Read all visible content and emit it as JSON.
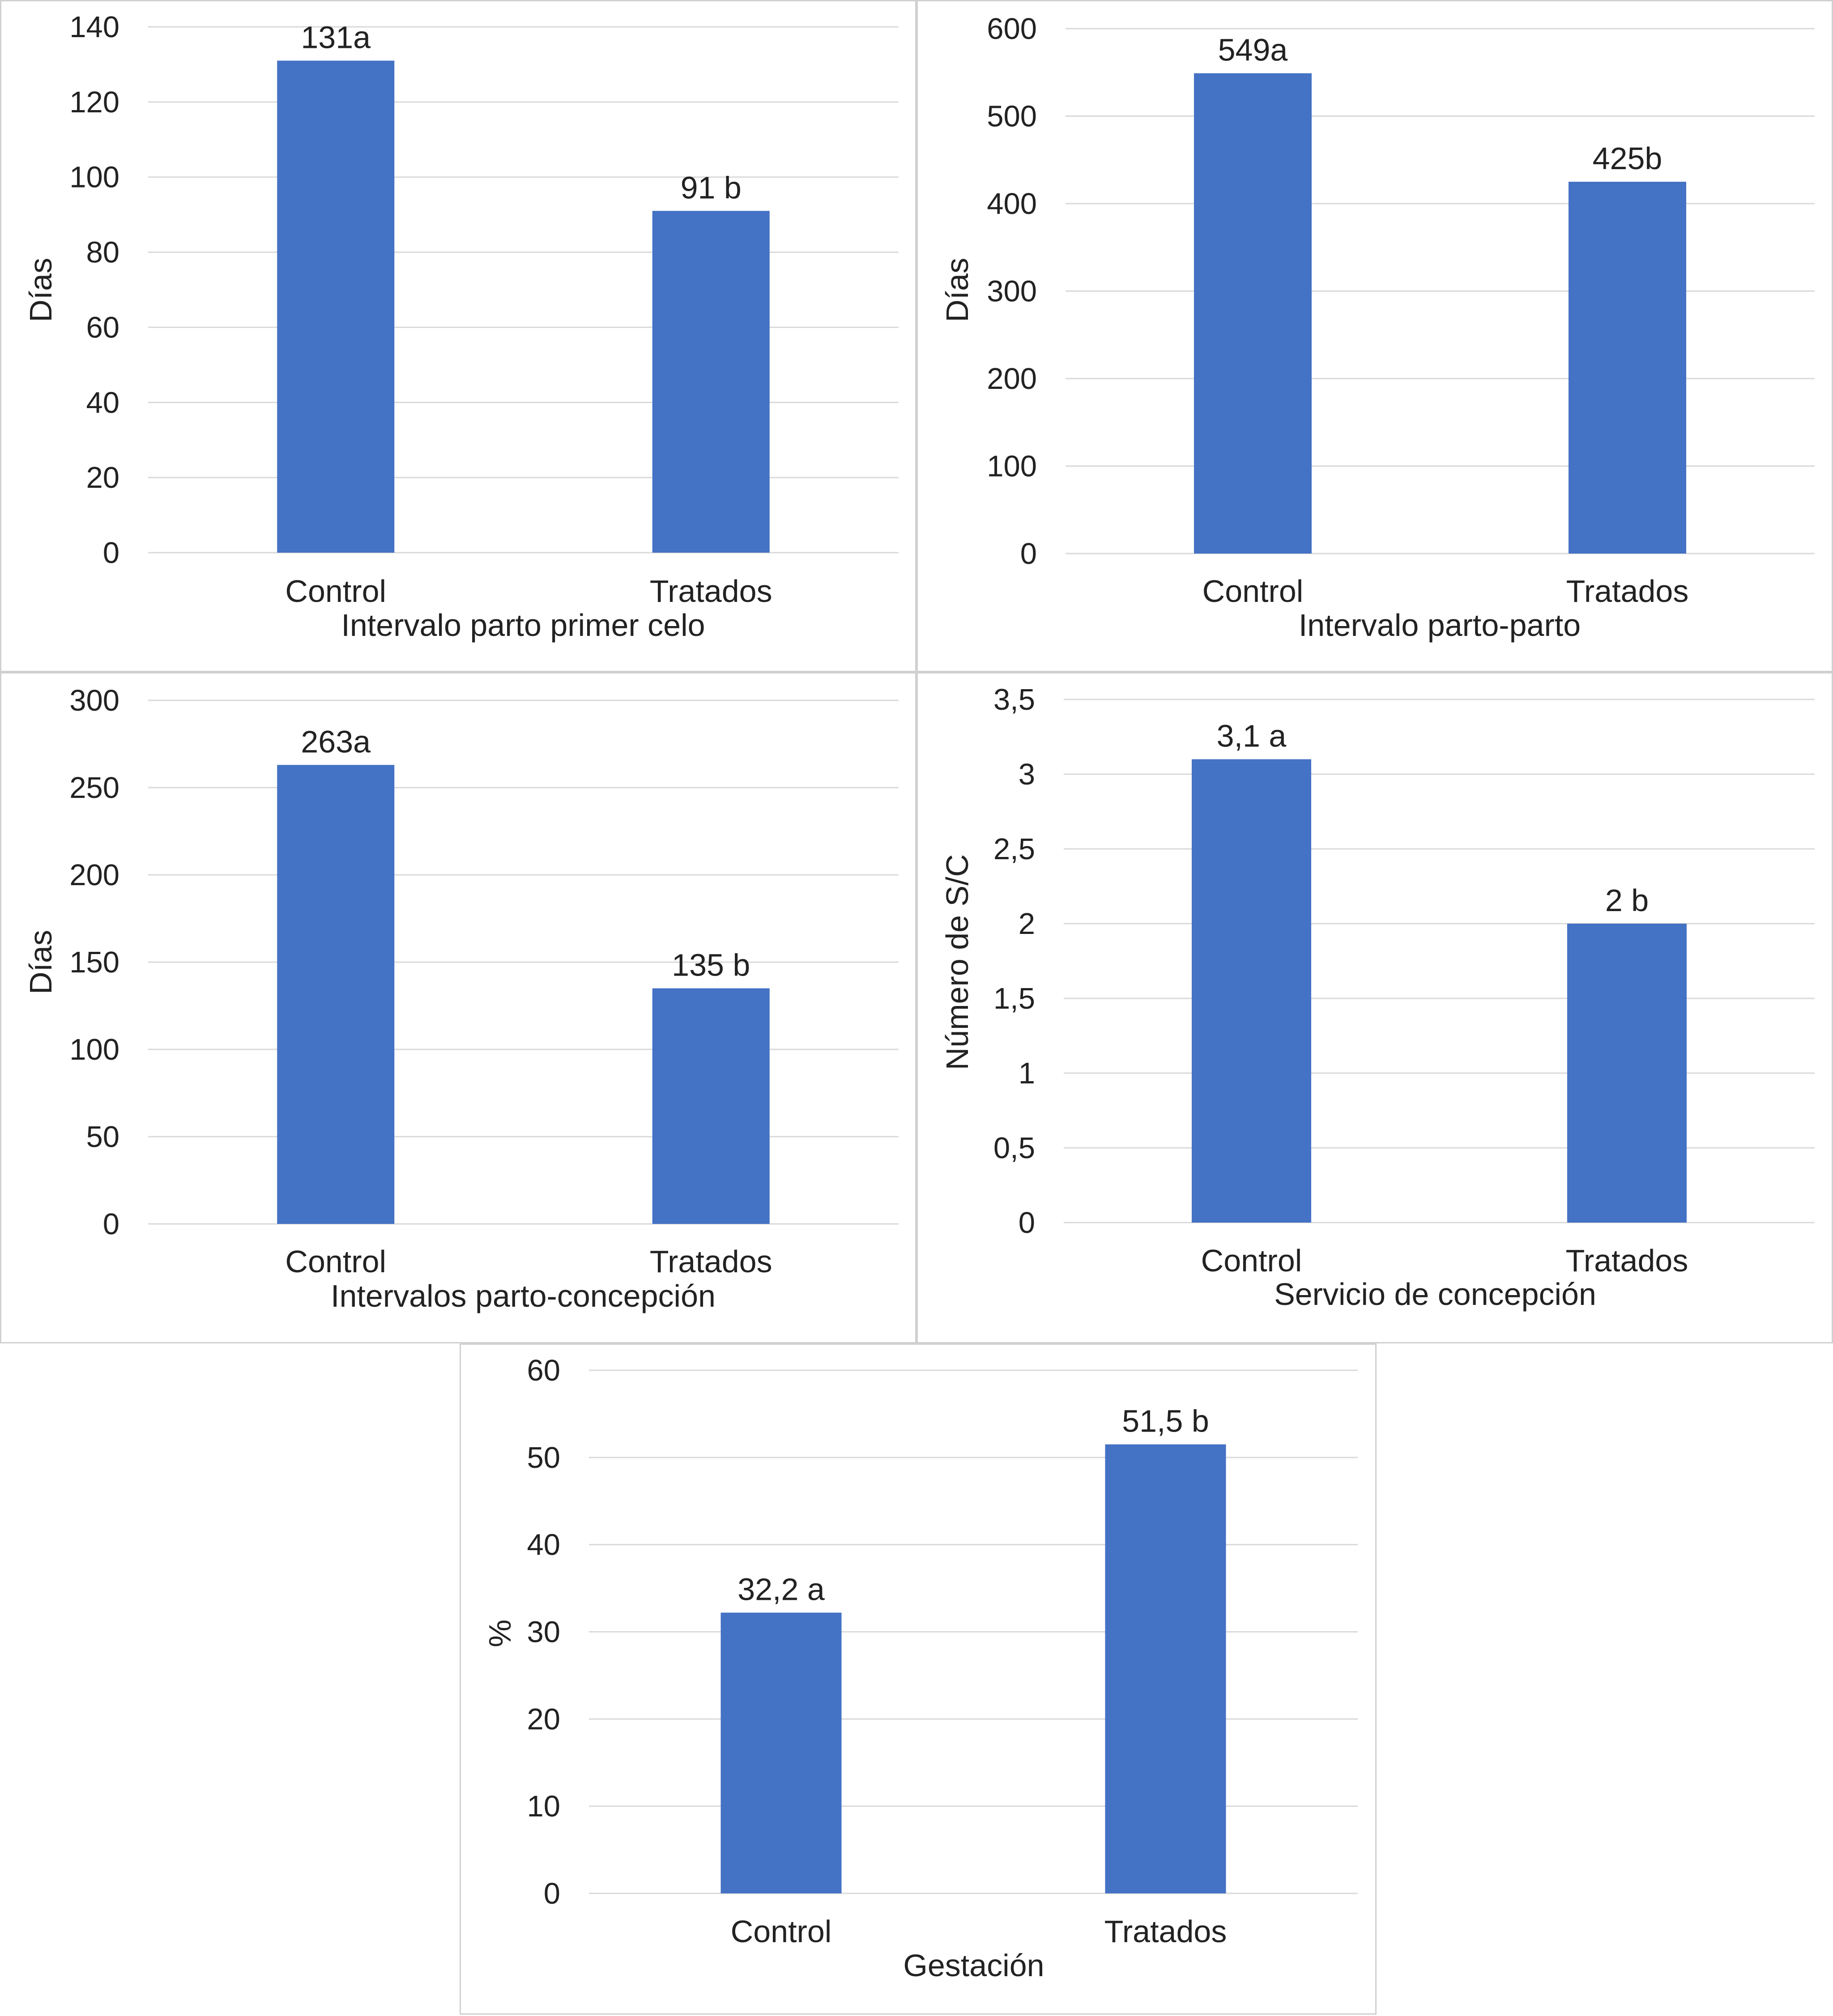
{
  "style": {
    "bar_color": "#4472C4",
    "grid_color": "#d9d9d9",
    "text_color": "#222222",
    "border_color": "#d0d0d0"
  },
  "chart_data": [
    {
      "type": "bar",
      "categories": [
        "Control",
        "Tratados"
      ],
      "values": [
        131,
        91
      ],
      "data_labels": [
        "131a",
        "91 b"
      ],
      "xlabel": "Intervalo parto primer celo",
      "ylabel": "Días",
      "ylim": [
        0,
        140
      ],
      "yticks": [
        0,
        20,
        40,
        60,
        80,
        100,
        120,
        140
      ],
      "ytick_labels": [
        "0",
        "20",
        "40",
        "60",
        "80",
        "100",
        "120",
        "140"
      ],
      "grid": true
    },
    {
      "type": "bar",
      "categories": [
        "Control",
        "Tratados"
      ],
      "values": [
        549,
        425
      ],
      "data_labels": [
        "549a",
        "425b"
      ],
      "xlabel": "Intervalo parto-parto",
      "ylabel": "Días",
      "ylim": [
        0,
        600
      ],
      "yticks": [
        0,
        100,
        200,
        300,
        400,
        500,
        600
      ],
      "ytick_labels": [
        "0",
        "100",
        "200",
        "300",
        "400",
        "500",
        "600"
      ],
      "grid": true
    },
    {
      "type": "bar",
      "categories": [
        "Control",
        "Tratados"
      ],
      "values": [
        263,
        135
      ],
      "data_labels": [
        "263a",
        "135 b"
      ],
      "xlabel": "Intervalos parto-concepción",
      "ylabel": "Días",
      "ylim": [
        0,
        300
      ],
      "yticks": [
        0,
        50,
        100,
        150,
        200,
        250,
        300
      ],
      "ytick_labels": [
        "0",
        "50",
        "100",
        "150",
        "200",
        "250",
        "300"
      ],
      "grid": true
    },
    {
      "type": "bar",
      "categories": [
        "Control",
        "Tratados"
      ],
      "values": [
        3.1,
        2
      ],
      "data_labels": [
        "3,1 a",
        "2 b"
      ],
      "xlabel": "Servicio de concepción",
      "ylabel": "Número de S/C",
      "ylim": [
        0,
        3.5
      ],
      "yticks": [
        0,
        0.5,
        1,
        1.5,
        2,
        2.5,
        3,
        3.5
      ],
      "ytick_labels": [
        "0",
        "0,5",
        "1",
        "1,5",
        "2",
        "2,5",
        "3",
        "3,5"
      ],
      "grid": true
    },
    {
      "type": "bar",
      "categories": [
        "Control",
        "Tratados"
      ],
      "values": [
        32.2,
        51.5
      ],
      "data_labels": [
        "32,2 a",
        "51,5 b"
      ],
      "xlabel": "Gestación",
      "ylabel": "%",
      "ylim": [
        0,
        60
      ],
      "yticks": [
        0,
        10,
        20,
        30,
        40,
        50,
        60
      ],
      "ytick_labels": [
        "0",
        "10",
        "20",
        "30",
        "40",
        "50",
        "60"
      ],
      "grid": true
    }
  ]
}
